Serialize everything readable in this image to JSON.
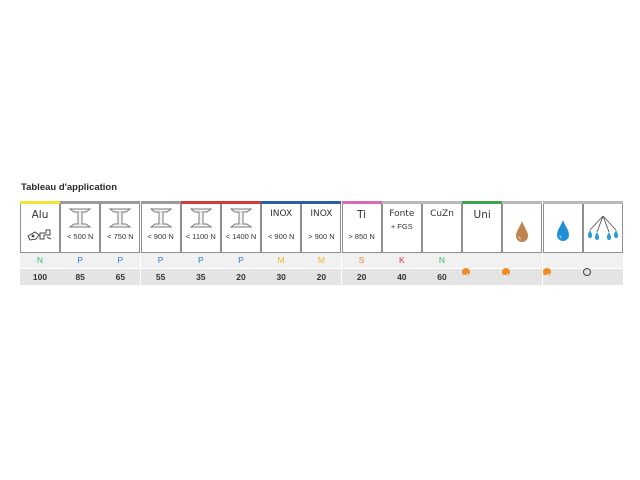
{
  "title": "Tableau d'application",
  "colors": {
    "N": "#2fbf71",
    "P": "#2b7bd1",
    "M": "#f1b72a",
    "S": "#ef7d2a",
    "K": "#e0334b",
    "check": "#ef8a24"
  },
  "columns": [
    {
      "bar": "#f2e534",
      "line1": "Alu",
      "line2": "",
      "icon": "alu-parts-icon",
      "material": "N",
      "material_color": "#2fbf71",
      "value": "100"
    },
    {
      "bar": "#9a9a9a",
      "line1": "",
      "line2": "< 500 N",
      "icon": "i-beam-icon",
      "material": "P",
      "material_color": "#2b7bd1",
      "value": "85"
    },
    {
      "bar": "#9a9a9a",
      "line1": "",
      "line2": "< 750 N",
      "icon": "i-beam-icon",
      "material": "P",
      "material_color": "#2b7bd1",
      "value": "65"
    },
    {
      "bar": "#9a9a9a",
      "line1": "",
      "line2": "< 900 N",
      "icon": "i-beam-icon",
      "material": "P",
      "material_color": "#2b7bd1",
      "value": "55"
    },
    {
      "bar": "#d23b3b",
      "line1": "",
      "line2": "< 1100 N",
      "icon": "i-beam-icon",
      "material": "P",
      "material_color": "#2b7bd1",
      "value": "35"
    },
    {
      "bar": "#d23b3b",
      "line1": "",
      "line2": "< 1400 N",
      "icon": "i-beam-icon",
      "material": "P",
      "material_color": "#2b7bd1",
      "value": "20"
    },
    {
      "bar": "#2a5fa8",
      "line1": "INOX",
      "line2": "< 900 N",
      "icon": "",
      "material": "M",
      "material_color": "#f1b72a",
      "value": "30"
    },
    {
      "bar": "#2a5fa8",
      "line1": "INOX",
      "line2": "> 900 N",
      "icon": "",
      "material": "M",
      "material_color": "#f1b72a",
      "value": "20"
    },
    {
      "bar": "#d86bb6",
      "line1": "Ti",
      "line2": "> 850 N",
      "icon": "",
      "material": "S",
      "material_color": "#ef7d2a",
      "value": "20"
    },
    {
      "bar": "#b9b9b9",
      "line1": "Fonte",
      "line2": "+ FGS",
      "icon": "",
      "material": "K",
      "material_color": "#e0334b",
      "value": "40"
    },
    {
      "bar": "#b9b9b9",
      "line1": "CuZn",
      "line2": "",
      "icon": "",
      "material": "N",
      "material_color": "#2fbf71",
      "value": "60"
    },
    {
      "bar": "#3aa84a",
      "line1": "Uni",
      "line2": "",
      "icon": "",
      "material": "",
      "material_color": "",
      "value": "",
      "check": "filled"
    },
    {
      "bar": "#b9b9b9",
      "line1": "",
      "line2": "",
      "icon": "oil-drop-icon",
      "material": "",
      "material_color": "",
      "value": "",
      "check": "filled"
    },
    {
      "bar": "#b9b9b9",
      "line1": "",
      "line2": "",
      "icon": "water-drop-icon",
      "material": "",
      "material_color": "",
      "value": "",
      "check": "filled"
    },
    {
      "bar": "#b9b9b9",
      "line1": "",
      "line2": "",
      "icon": "spray-icon",
      "material": "",
      "material_color": "",
      "value": "",
      "check": "empty"
    }
  ]
}
